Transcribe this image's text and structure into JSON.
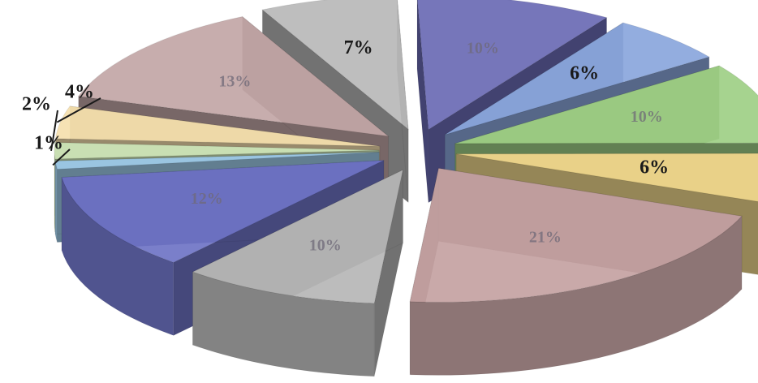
{
  "chart_data": {
    "type": "pie",
    "title": "",
    "slices": [
      {
        "label": "10%",
        "value": 10,
        "color": "#6a6ab4"
      },
      {
        "label": "6%",
        "value": 6,
        "color": "#8aa6dc"
      },
      {
        "label": "10%",
        "value": 10,
        "color": "#9ecf86"
      },
      {
        "label": "6%",
        "value": 6,
        "color": "#f0d88c"
      },
      {
        "label": "21%",
        "value": 21,
        "color": "#c4a2a2"
      },
      {
        "label": "10%",
        "value": 10,
        "color": "#b6b6b6"
      },
      {
        "label": "12%",
        "value": 12,
        "color": "#6f74c6"
      },
      {
        "label": "1%",
        "value": 1,
        "color": "#9ecbe8"
      },
      {
        "label": "2%",
        "value": 2,
        "color": "#cfe6b8"
      },
      {
        "label": "4%",
        "value": 4,
        "color": "#f5dfae"
      },
      {
        "label": "13%",
        "value": 13,
        "color": "#c2a6a6"
      },
      {
        "label": "7%",
        "value": 7,
        "color": "#b8b8b8"
      }
    ]
  }
}
